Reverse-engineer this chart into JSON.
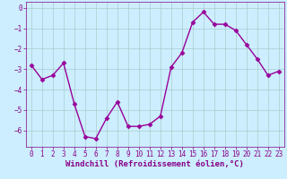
{
  "x": [
    0,
    1,
    2,
    3,
    4,
    5,
    6,
    7,
    8,
    9,
    10,
    11,
    12,
    13,
    14,
    15,
    16,
    17,
    18,
    19,
    20,
    21,
    22,
    23
  ],
  "y": [
    -2.8,
    -3.5,
    -3.3,
    -2.7,
    -4.7,
    -6.3,
    -6.4,
    -5.4,
    -4.6,
    -5.8,
    -5.8,
    -5.7,
    -5.3,
    -2.9,
    -2.2,
    -0.7,
    -0.2,
    -0.8,
    -0.8,
    -1.1,
    -1.8,
    -2.5,
    -3.3,
    -3.1
  ],
  "line_color": "#990099",
  "marker": "D",
  "markersize": 2.5,
  "linewidth": 1.0,
  "bg_color": "#cceeff",
  "grid_color": "#aacccc",
  "xlabel": "Windchill (Refroidissement éolien,°C)",
  "xlabel_fontsize": 6.5,
  "ylim": [
    -6.8,
    0.3
  ],
  "xlim": [
    -0.5,
    23.5
  ],
  "yticks": [
    0,
    -1,
    -2,
    -3,
    -4,
    -5,
    -6
  ],
  "xticks": [
    0,
    1,
    2,
    3,
    4,
    5,
    6,
    7,
    8,
    9,
    10,
    11,
    12,
    13,
    14,
    15,
    16,
    17,
    18,
    19,
    20,
    21,
    22,
    23
  ],
  "tick_fontsize": 5.5,
  "tick_color": "#880088",
  "spine_color": "#880088"
}
